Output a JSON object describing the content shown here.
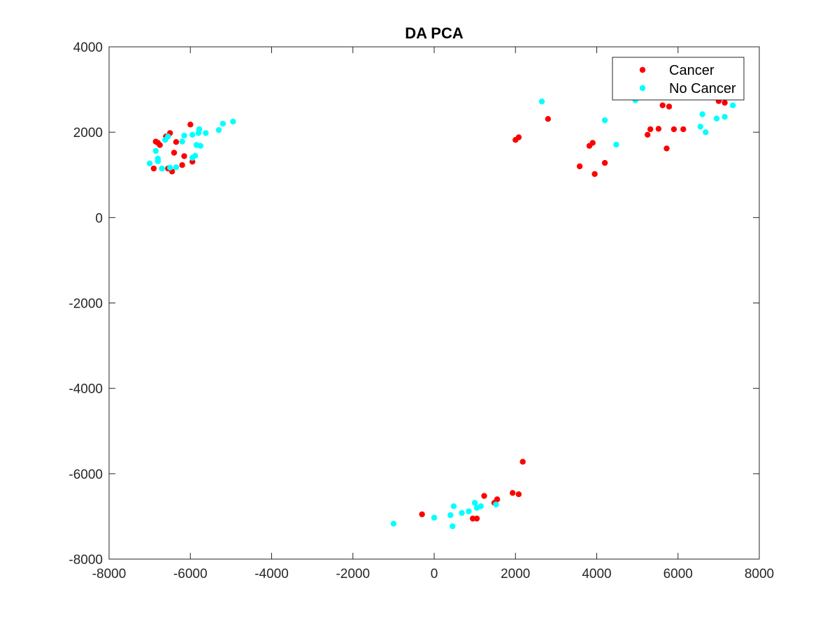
{
  "chart_data": {
    "type": "scatter",
    "title": "DA PCA",
    "xlabel": "",
    "ylabel": "",
    "xlim": [
      -8000,
      8000
    ],
    "ylim": [
      -8000,
      4000
    ],
    "xticks": [
      "-8000",
      "-6000",
      "-4000",
      "-2000",
      "0",
      "2000",
      "4000",
      "6000",
      "8000"
    ],
    "yticks": [
      "4000",
      "2000",
      "0",
      "-2000",
      "-4000",
      "-6000",
      "-8000"
    ],
    "grid": false,
    "legend_position": "top-right",
    "series": [
      {
        "name": "Cancer",
        "color": "#ff0000",
        "points": [
          [
            -6900,
            1150
          ],
          [
            -6850,
            1780
          ],
          [
            -6800,
            1750
          ],
          [
            -6750,
            1700
          ],
          [
            -6600,
            1900
          ],
          [
            -6550,
            1150
          ],
          [
            -6500,
            1980
          ],
          [
            -6450,
            1080
          ],
          [
            -6400,
            1520
          ],
          [
            -6350,
            1770
          ],
          [
            -6200,
            1230
          ],
          [
            -6150,
            1440
          ],
          [
            -6000,
            2180
          ],
          [
            -5950,
            1310
          ],
          [
            2000,
            1820
          ],
          [
            2080,
            1880
          ],
          [
            2800,
            2310
          ],
          [
            3580,
            1200
          ],
          [
            3820,
            1680
          ],
          [
            3900,
            1750
          ],
          [
            3950,
            1020
          ],
          [
            4200,
            1280
          ],
          [
            5250,
            1940
          ],
          [
            5320,
            2070
          ],
          [
            5520,
            2080
          ],
          [
            5620,
            2630
          ],
          [
            5720,
            1620
          ],
          [
            5780,
            2600
          ],
          [
            5900,
            2070
          ],
          [
            6130,
            2070
          ],
          [
            6300,
            2830
          ],
          [
            7000,
            2730
          ],
          [
            7150,
            2690
          ],
          [
            -300,
            -6950
          ],
          [
            950,
            -7050
          ],
          [
            1050,
            -7050
          ],
          [
            1230,
            -6520
          ],
          [
            1480,
            -6680
          ],
          [
            1550,
            -6600
          ],
          [
            1930,
            -6450
          ],
          [
            2080,
            -6480
          ],
          [
            2180,
            -5720
          ]
        ]
      },
      {
        "name": "No Cancer",
        "color": "#00ffff",
        "points": [
          [
            -7000,
            1270
          ],
          [
            -6850,
            1560
          ],
          [
            -6800,
            1320
          ],
          [
            -6800,
            1380
          ],
          [
            -6700,
            1150
          ],
          [
            -6620,
            1820
          ],
          [
            -6550,
            1900
          ],
          [
            -6500,
            1170
          ],
          [
            -6350,
            1180
          ],
          [
            -6200,
            1780
          ],
          [
            -6150,
            1920
          ],
          [
            -5950,
            1400
          ],
          [
            -5950,
            1940
          ],
          [
            -5880,
            1450
          ],
          [
            -5850,
            1700
          ],
          [
            -5800,
            1980
          ],
          [
            -5780,
            2070
          ],
          [
            -5750,
            1680
          ],
          [
            -5620,
            1980
          ],
          [
            -5300,
            2050
          ],
          [
            -5200,
            2200
          ],
          [
            -4950,
            2250
          ],
          [
            2650,
            2720
          ],
          [
            4200,
            2280
          ],
          [
            4480,
            1710
          ],
          [
            4950,
            2750
          ],
          [
            6550,
            2130
          ],
          [
            6600,
            2420
          ],
          [
            6680,
            2000
          ],
          [
            6950,
            2320
          ],
          [
            7150,
            2360
          ],
          [
            7350,
            2630
          ],
          [
            -1000,
            -7170
          ],
          [
            0,
            -7030
          ],
          [
            400,
            -6970
          ],
          [
            450,
            -7230
          ],
          [
            480,
            -6760
          ],
          [
            680,
            -6920
          ],
          [
            850,
            -6880
          ],
          [
            1000,
            -6680
          ],
          [
            1050,
            -6800
          ],
          [
            1150,
            -6760
          ],
          [
            1520,
            -6720
          ]
        ]
      }
    ]
  }
}
